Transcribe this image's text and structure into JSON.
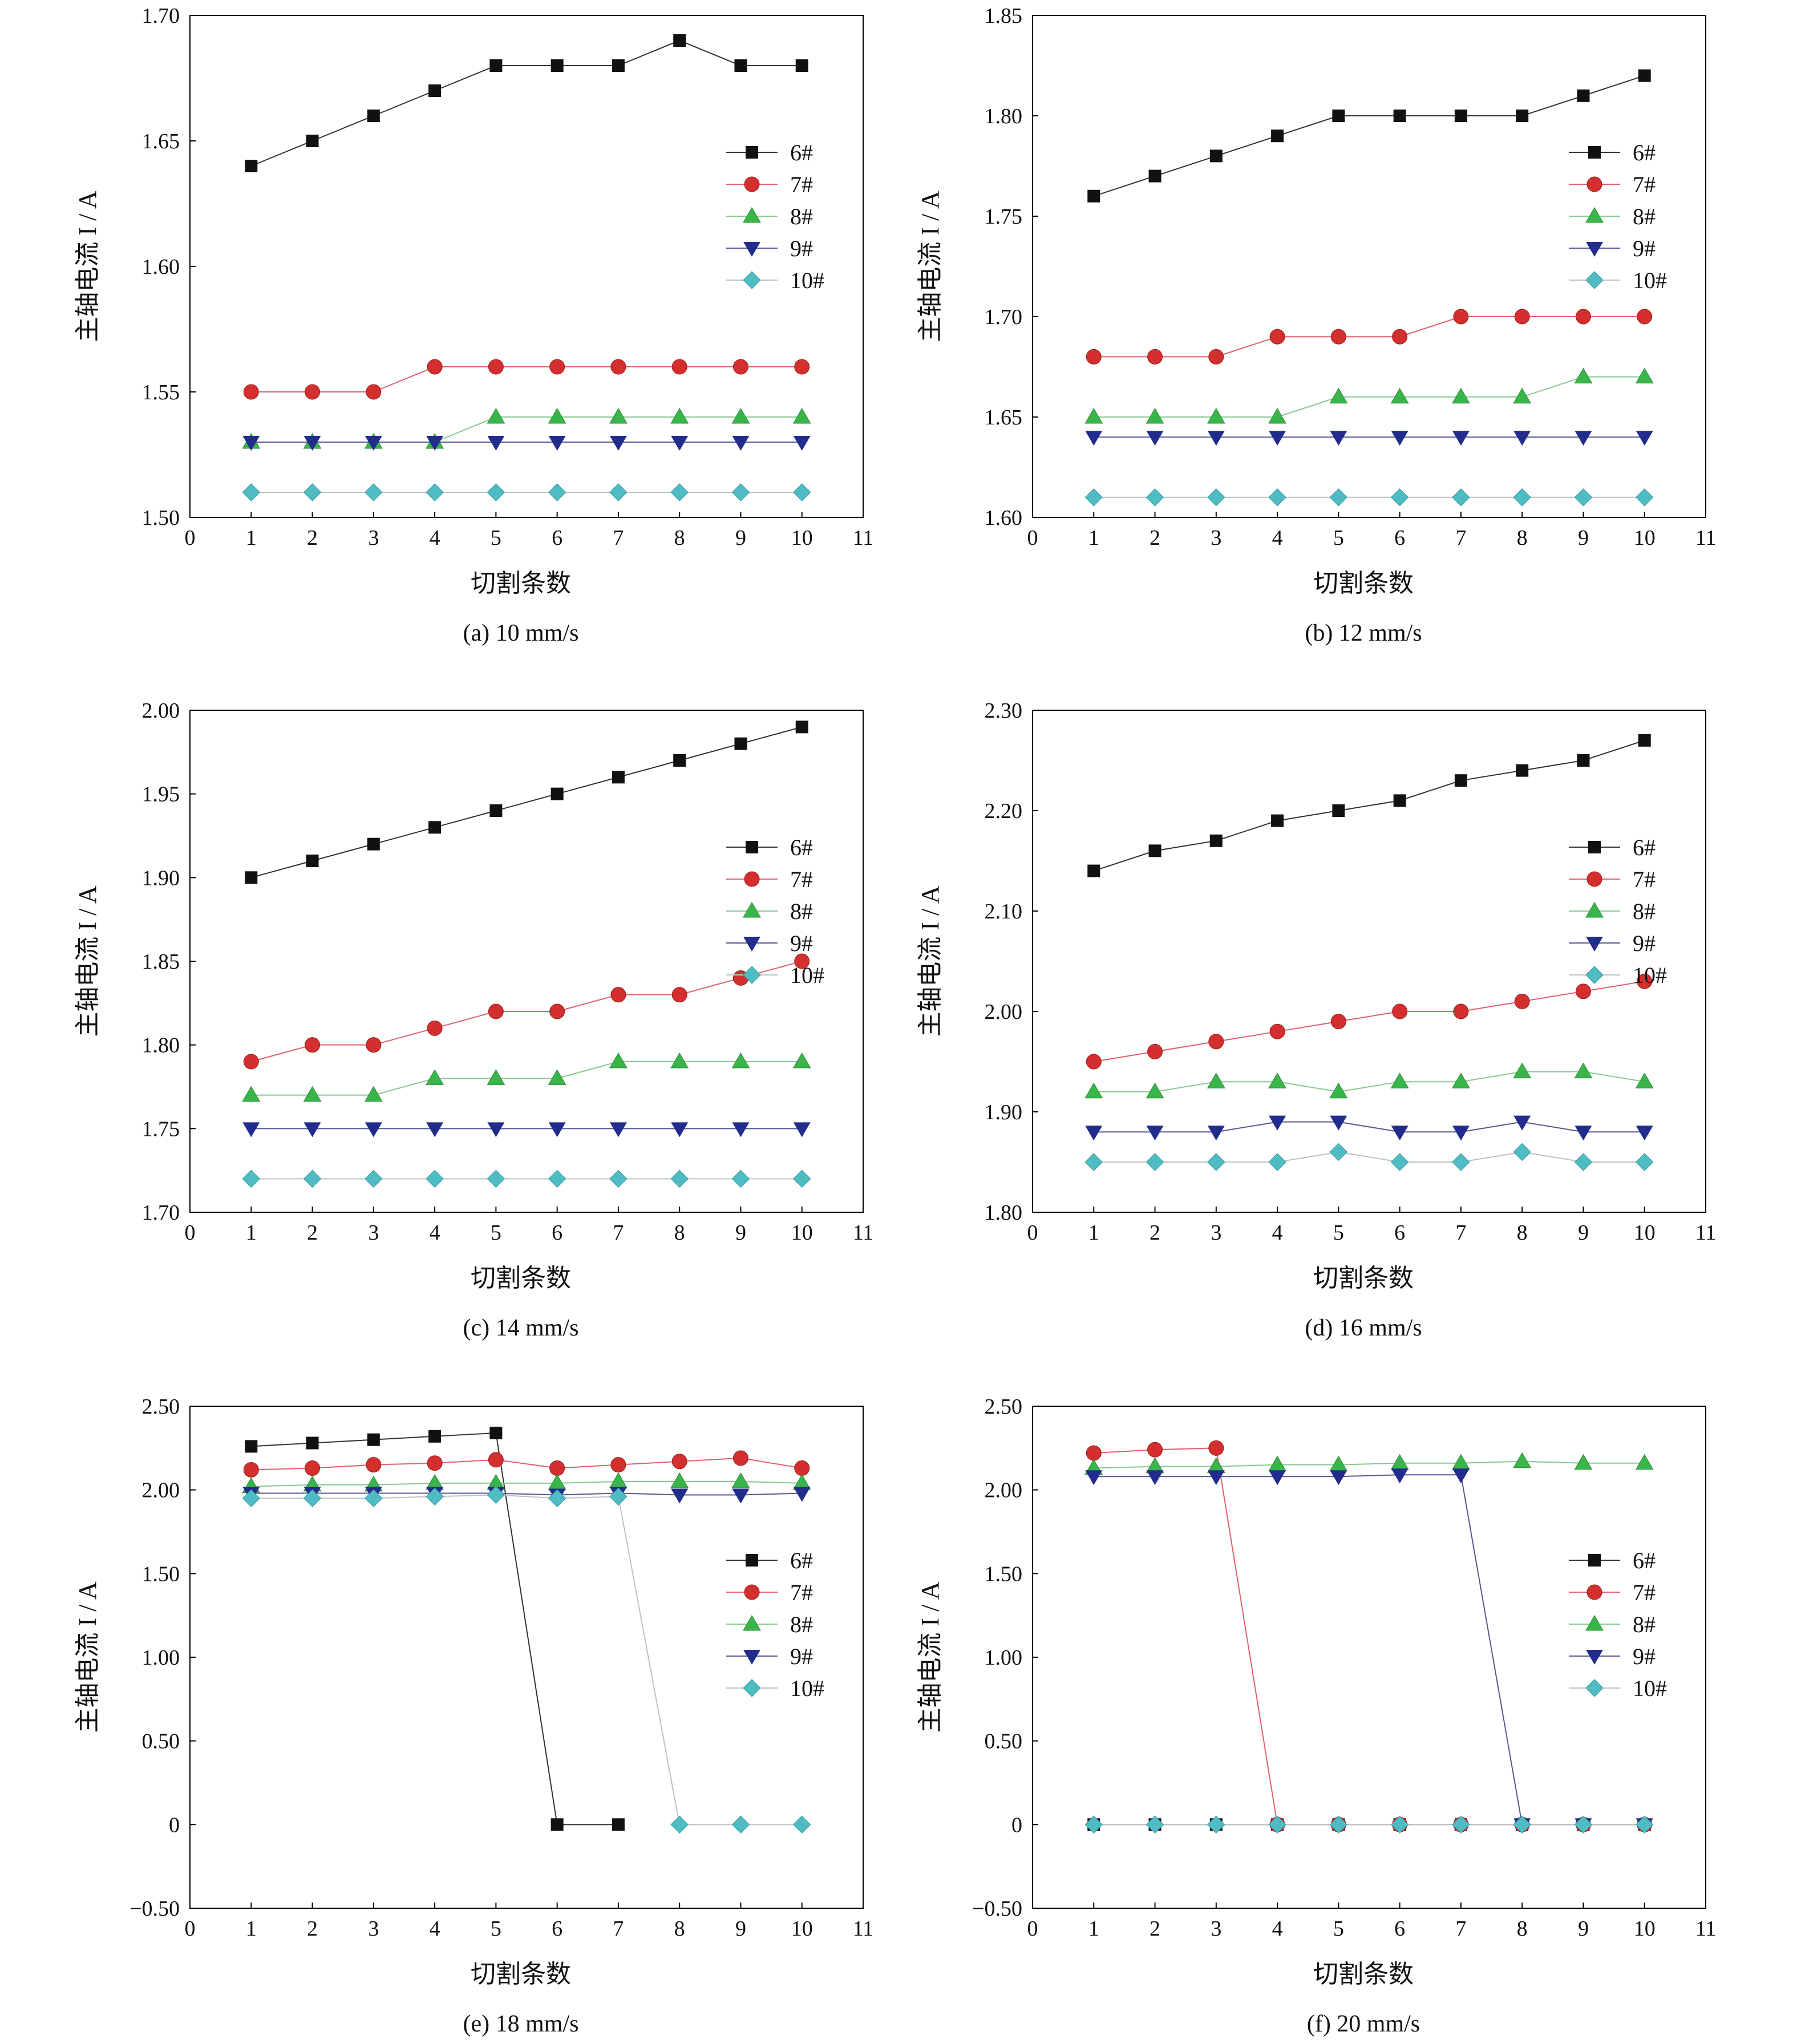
{
  "figure": {
    "x_tick_labels": [
      "0",
      "1",
      "2",
      "3",
      "4",
      "5",
      "6",
      "7",
      "8",
      "9",
      "10",
      "11"
    ]
  },
  "series_styles": [
    {
      "name": "6#",
      "marker": "square",
      "color": "#111111",
      "line": "#333333"
    },
    {
      "name": "7#",
      "marker": "circle",
      "color": "#d42f2f",
      "line": "#e06070"
    },
    {
      "name": "8#",
      "marker": "triangle-up",
      "color": "#3ab54a",
      "line": "#88c88f"
    },
    {
      "name": "9#",
      "marker": "triangle-down",
      "color": "#222c8c",
      "line": "#555a90"
    },
    {
      "name": "10#",
      "marker": "diamond",
      "color": "#4fbcc4",
      "line": "#b8c4c6"
    }
  ],
  "chart_data": [
    {
      "type": "line",
      "caption": "(a) 10 mm/s",
      "xlabel": "切割条数",
      "ylabel": "主轴电流 I / A",
      "xlim": [
        0,
        11
      ],
      "ylim": [
        1.5,
        1.7
      ],
      "yticks": [
        "1.50",
        "1.55",
        "1.60",
        "1.65",
        "1.70"
      ],
      "legend_position": "upper-right",
      "x": [
        1,
        2,
        3,
        4,
        5,
        6,
        7,
        8,
        9,
        10
      ],
      "series": [
        {
          "name": "6#",
          "values": [
            1.64,
            1.65,
            1.66,
            1.67,
            1.68,
            1.68,
            1.68,
            1.69,
            1.68,
            1.68
          ]
        },
        {
          "name": "7#",
          "values": [
            1.55,
            1.55,
            1.55,
            1.56,
            1.56,
            1.56,
            1.56,
            1.56,
            1.56,
            1.56
          ]
        },
        {
          "name": "8#",
          "values": [
            1.53,
            1.53,
            1.53,
            1.53,
            1.54,
            1.54,
            1.54,
            1.54,
            1.54,
            1.54
          ]
        },
        {
          "name": "9#",
          "values": [
            1.53,
            1.53,
            1.53,
            1.53,
            1.53,
            1.53,
            1.53,
            1.53,
            1.53,
            1.53
          ]
        },
        {
          "name": "10#",
          "values": [
            1.51,
            1.51,
            1.51,
            1.51,
            1.51,
            1.51,
            1.51,
            1.51,
            1.51,
            1.51
          ]
        }
      ]
    },
    {
      "type": "line",
      "caption": "(b) 12 mm/s",
      "xlabel": "切割条数",
      "ylabel": "主轴电流 I / A",
      "xlim": [
        0,
        11
      ],
      "ylim": [
        1.6,
        1.85
      ],
      "yticks": [
        "1.60",
        "1.65",
        "1.70",
        "1.75",
        "1.80",
        "1.85"
      ],
      "legend_position": "upper-right",
      "x": [
        1,
        2,
        3,
        4,
        5,
        6,
        7,
        8,
        9,
        10
      ],
      "series": [
        {
          "name": "6#",
          "values": [
            1.76,
            1.77,
            1.78,
            1.79,
            1.8,
            1.8,
            1.8,
            1.8,
            1.81,
            1.82
          ]
        },
        {
          "name": "7#",
          "values": [
            1.68,
            1.68,
            1.68,
            1.69,
            1.69,
            1.69,
            1.7,
            1.7,
            1.7,
            1.7
          ]
        },
        {
          "name": "8#",
          "values": [
            1.65,
            1.65,
            1.65,
            1.65,
            1.66,
            1.66,
            1.66,
            1.66,
            1.67,
            1.67
          ]
        },
        {
          "name": "9#",
          "values": [
            1.64,
            1.64,
            1.64,
            1.64,
            1.64,
            1.64,
            1.64,
            1.64,
            1.64,
            1.64
          ]
        },
        {
          "name": "10#",
          "values": [
            1.61,
            1.61,
            1.61,
            1.61,
            1.61,
            1.61,
            1.61,
            1.61,
            1.61,
            1.61
          ]
        }
      ]
    },
    {
      "type": "line",
      "caption": "(c) 14 mm/s",
      "xlabel": "切割条数",
      "ylabel": "主轴电流 I / A",
      "xlim": [
        0,
        11
      ],
      "ylim": [
        1.7,
        2.0
      ],
      "yticks": [
        "1.70",
        "1.75",
        "1.80",
        "1.85",
        "1.90",
        "1.95",
        "2.00"
      ],
      "legend_position": "upper-right",
      "x": [
        1,
        2,
        3,
        4,
        5,
        6,
        7,
        8,
        9,
        10
      ],
      "series": [
        {
          "name": "6#",
          "values": [
            1.9,
            1.91,
            1.92,
            1.93,
            1.94,
            1.95,
            1.96,
            1.97,
            1.98,
            1.99
          ]
        },
        {
          "name": "7#",
          "values": [
            1.79,
            1.8,
            1.8,
            1.81,
            1.82,
            1.82,
            1.83,
            1.83,
            1.84,
            1.85
          ]
        },
        {
          "name": "8#",
          "values": [
            1.77,
            1.77,
            1.77,
            1.78,
            1.78,
            1.78,
            1.79,
            1.79,
            1.79,
            1.79
          ]
        },
        {
          "name": "9#",
          "values": [
            1.75,
            1.75,
            1.75,
            1.75,
            1.75,
            1.75,
            1.75,
            1.75,
            1.75,
            1.75
          ]
        },
        {
          "name": "10#",
          "values": [
            1.72,
            1.72,
            1.72,
            1.72,
            1.72,
            1.72,
            1.72,
            1.72,
            1.72,
            1.72
          ]
        }
      ]
    },
    {
      "type": "line",
      "caption": "(d) 16 mm/s",
      "xlabel": "切割条数",
      "ylabel": "主轴电流 I / A",
      "xlim": [
        0,
        11
      ],
      "ylim": [
        1.8,
        2.3
      ],
      "yticks": [
        "1.80",
        "1.90",
        "2.00",
        "2.10",
        "2.20",
        "2.30"
      ],
      "legend_position": "upper-right",
      "x": [
        1,
        2,
        3,
        4,
        5,
        6,
        7,
        8,
        9,
        10
      ],
      "series": [
        {
          "name": "6#",
          "values": [
            2.14,
            2.16,
            2.17,
            2.19,
            2.2,
            2.21,
            2.23,
            2.24,
            2.25,
            2.27
          ]
        },
        {
          "name": "7#",
          "values": [
            1.95,
            1.96,
            1.97,
            1.98,
            1.99,
            2.0,
            2.0,
            2.01,
            2.02,
            2.03
          ]
        },
        {
          "name": "8#",
          "values": [
            1.92,
            1.92,
            1.93,
            1.93,
            1.92,
            1.93,
            1.93,
            1.94,
            1.94,
            1.93
          ]
        },
        {
          "name": "9#",
          "values": [
            1.88,
            1.88,
            1.88,
            1.89,
            1.89,
            1.88,
            1.88,
            1.89,
            1.88,
            1.88
          ]
        },
        {
          "name": "10#",
          "values": [
            1.85,
            1.85,
            1.85,
            1.85,
            1.86,
            1.85,
            1.85,
            1.86,
            1.85,
            1.85
          ]
        }
      ]
    },
    {
      "type": "line",
      "caption": "(e) 18 mm/s",
      "xlabel": "切割条数",
      "ylabel": "主轴电流 I / A",
      "xlim": [
        0,
        11
      ],
      "ylim": [
        -0.5,
        2.5
      ],
      "yticks": [
        "−0.50",
        "0",
        "0.50",
        "1.00",
        "1.50",
        "2.00",
        "2.50"
      ],
      "legend_position": "right",
      "x": [
        1,
        2,
        3,
        4,
        5,
        6,
        7,
        8,
        9,
        10
      ],
      "series": [
        {
          "name": "6#",
          "values": [
            2.26,
            2.28,
            2.3,
            2.32,
            2.34,
            0,
            0,
            null,
            null,
            null
          ]
        },
        {
          "name": "7#",
          "values": [
            2.12,
            2.13,
            2.15,
            2.16,
            2.18,
            2.13,
            2.15,
            2.17,
            2.19,
            2.13
          ]
        },
        {
          "name": "8#",
          "values": [
            2.02,
            2.03,
            2.03,
            2.04,
            2.04,
            2.04,
            2.05,
            2.05,
            2.05,
            2.04
          ]
        },
        {
          "name": "9#",
          "values": [
            1.98,
            1.98,
            1.98,
            1.98,
            1.98,
            1.97,
            1.98,
            1.97,
            1.97,
            1.98
          ]
        },
        {
          "name": "10#",
          "values": [
            1.95,
            1.95,
            1.95,
            1.96,
            1.97,
            1.95,
            1.96,
            0,
            0,
            0
          ]
        }
      ]
    },
    {
      "type": "line",
      "caption": "(f) 20 mm/s",
      "xlabel": "切割条数",
      "ylabel": "主轴电流 I / A",
      "xlim": [
        0,
        11
      ],
      "ylim": [
        -0.5,
        2.5
      ],
      "yticks": [
        "−0.50",
        "0",
        "0.50",
        "1.00",
        "1.50",
        "2.00",
        "2.50"
      ],
      "legend_position": "right",
      "x": [
        1,
        2,
        3,
        4,
        5,
        6,
        7,
        8,
        9,
        10
      ],
      "series": [
        {
          "name": "6#",
          "values": [
            0,
            0,
            0,
            0,
            0,
            0,
            0,
            0,
            0,
            0
          ]
        },
        {
          "name": "7#",
          "values": [
            2.22,
            2.24,
            2.25,
            0,
            0,
            0,
            0,
            0,
            0,
            0
          ]
        },
        {
          "name": "8#",
          "values": [
            2.13,
            2.14,
            2.14,
            2.15,
            2.15,
            2.16,
            2.16,
            2.17,
            2.16,
            2.16
          ]
        },
        {
          "name": "9#",
          "values": [
            2.08,
            2.08,
            2.08,
            2.08,
            2.08,
            2.09,
            2.09,
            0,
            0,
            0
          ]
        },
        {
          "name": "10#",
          "values": [
            0,
            0,
            0,
            0,
            0,
            0,
            0,
            0,
            0,
            0
          ]
        }
      ]
    }
  ]
}
